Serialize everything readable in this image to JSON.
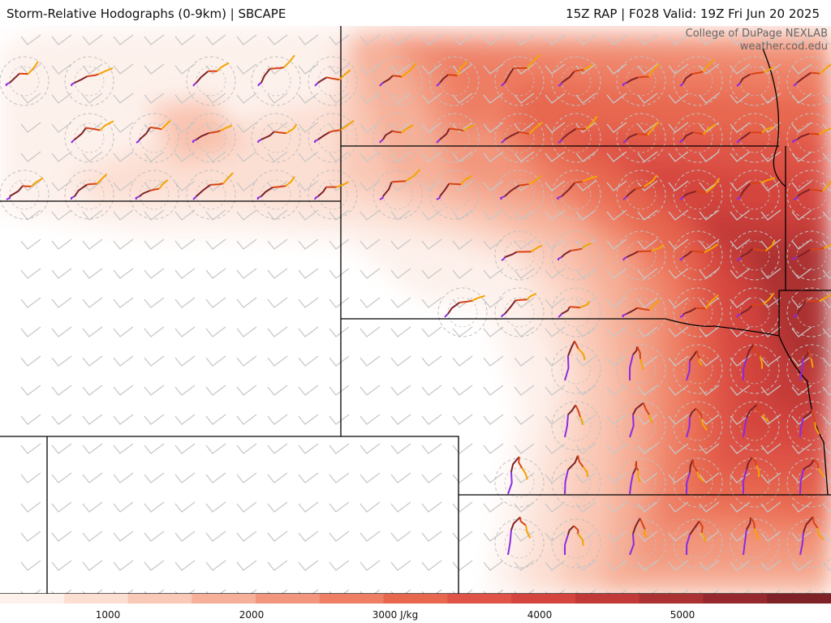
{
  "header": {
    "title_left": "Storm-Relative Hodographs (0-9km) | SBCAPE",
    "title_right": "15Z RAP | F028 Valid: 19Z Fri Jun 20 2025"
  },
  "credit": {
    "line1": "College of DuPage NEXLAB",
    "line2": "weather.cod.edu"
  },
  "legend": {
    "ticks": [
      "1000",
      "2000",
      "3000 J/kg",
      "4000",
      "5000"
    ],
    "colors": [
      "#fdf1ec",
      "#fcdfd3",
      "#f9c8b6",
      "#f6b099",
      "#f2977d",
      "#ee7e64",
      "#e7674f",
      "#df5446",
      "#d4453e",
      "#c23a38",
      "#ac3133",
      "#96292d",
      "#7f2227"
    ]
  },
  "hodograph_colors": {
    "low_level": "#7f2227",
    "mid_low": "#d84315",
    "mid": "#f5a300",
    "upper": "#8a2be2"
  },
  "map_colors": {
    "boundaries": "#000000",
    "wind_barbs": "#c8c8c8",
    "range_rings": "#c0c0c0"
  }
}
